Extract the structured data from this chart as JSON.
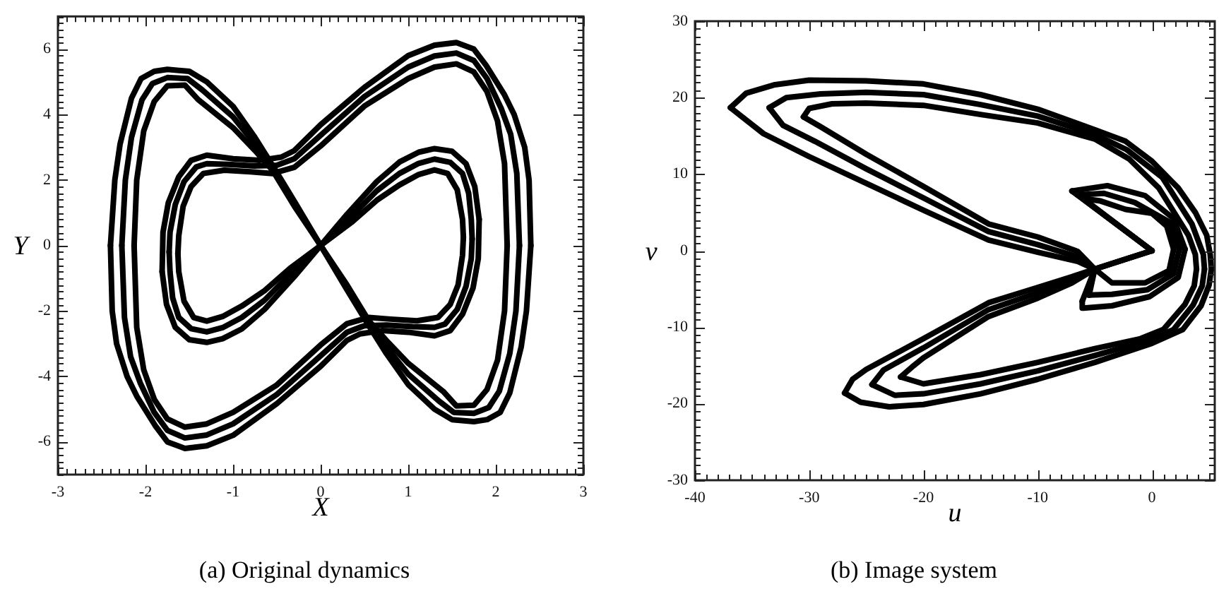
{
  "chart_data": [
    {
      "type": "line",
      "title": "(a) Original dynamics",
      "xlabel": "X",
      "ylabel": "Y",
      "marker": "none",
      "line_style": "solid",
      "xlim": [
        -3,
        3
      ],
      "ylim": [
        -7,
        7
      ],
      "xticks": [
        -3,
        {
          "value": -2.9,
          "label": null
        },
        {
          "value": -2.8,
          "label": null
        },
        {
          "value": -2.7,
          "label": null
        },
        {
          "value": -2.6,
          "label": null
        },
        {
          "value": -2.5,
          "label": null
        },
        {
          "value": -2.4,
          "label": null
        },
        {
          "value": -2.3,
          "label": null
        },
        {
          "value": -2.2,
          "label": null
        },
        {
          "value": -2.1,
          "label": null
        },
        -2,
        {
          "value": -1.9,
          "label": null
        },
        {
          "value": -1.8,
          "label": null
        },
        {
          "value": -1.7,
          "label": null
        },
        {
          "value": -1.6,
          "label": null
        },
        {
          "value": -1.5,
          "label": null
        },
        {
          "value": -1.4,
          "label": null
        },
        {
          "value": -1.3,
          "label": null
        },
        {
          "value": -1.2,
          "label": null
        },
        {
          "value": -1.1,
          "label": null
        },
        -1,
        {
          "value": -0.9,
          "label": null
        },
        {
          "value": -0.8,
          "label": null
        },
        {
          "value": -0.7,
          "label": null
        },
        {
          "value": -0.6,
          "label": null
        },
        {
          "value": -0.5,
          "label": null
        },
        {
          "value": -0.4,
          "label": null
        },
        {
          "value": -0.3,
          "label": null
        },
        {
          "value": -0.2,
          "label": null
        },
        {
          "value": -0.1,
          "label": null
        },
        0,
        {
          "value": 0.1,
          "label": null
        },
        {
          "value": 0.2,
          "label": null
        },
        {
          "value": 0.3,
          "label": null
        },
        {
          "value": 0.4,
          "label": null
        },
        {
          "value": 0.5,
          "label": null
        },
        {
          "value": 0.6,
          "label": null
        },
        {
          "value": 0.7,
          "label": null
        },
        {
          "value": 0.8,
          "label": null
        },
        {
          "value": 0.9,
          "label": null
        },
        1,
        {
          "value": 1.1,
          "label": null
        },
        {
          "value": 1.2,
          "label": null
        },
        {
          "value": 1.3,
          "label": null
        },
        {
          "value": 1.4,
          "label": null
        },
        {
          "value": 1.5,
          "label": null
        },
        {
          "value": 1.6,
          "label": null
        },
        {
          "value": 1.7,
          "label": null
        },
        {
          "value": 1.8,
          "label": null
        },
        {
          "value": 1.9,
          "label": null
        },
        2,
        {
          "value": 2.1,
          "label": null
        },
        {
          "value": 2.2,
          "label": null
        },
        {
          "value": 2.3,
          "label": null
        },
        {
          "value": 2.4,
          "label": null
        },
        {
          "value": 2.5,
          "label": null
        },
        {
          "value": 2.6,
          "label": null
        },
        {
          "value": 2.7,
          "label": null
        },
        {
          "value": 2.8,
          "label": null
        },
        {
          "value": 2.9,
          "label": null
        },
        3
      ],
      "yticks": [
        {
          "value": -7,
          "label": null
        },
        {
          "value": -6.8,
          "label": null
        },
        {
          "value": -6.6,
          "label": null
        },
        {
          "value": -6.4,
          "label": null
        },
        {
          "value": -6.2,
          "label": null
        },
        -6,
        {
          "value": -5.8,
          "label": null
        },
        {
          "value": -5.6,
          "label": null
        },
        {
          "value": -5.4,
          "label": null
        },
        {
          "value": -5.2,
          "label": null
        },
        {
          "value": -5,
          "label": null
        },
        {
          "value": -4.8,
          "label": null
        },
        {
          "value": -4.6,
          "label": null
        },
        {
          "value": -4.4,
          "label": null
        },
        {
          "value": -4.2,
          "label": null
        },
        -4,
        {
          "value": -3.8,
          "label": null
        },
        {
          "value": -3.6,
          "label": null
        },
        {
          "value": -3.4,
          "label": null
        },
        {
          "value": -3.2,
          "label": null
        },
        {
          "value": -3,
          "label": null
        },
        {
          "value": -2.8,
          "label": null
        },
        {
          "value": -2.6,
          "label": null
        },
        {
          "value": -2.4,
          "label": null
        },
        {
          "value": -2.2,
          "label": null
        },
        -2,
        {
          "value": -1.8,
          "label": null
        },
        {
          "value": -1.6,
          "label": null
        },
        {
          "value": -1.4,
          "label": null
        },
        {
          "value": -1.2,
          "label": null
        },
        {
          "value": -1,
          "label": null
        },
        {
          "value": -0.8,
          "label": null
        },
        {
          "value": -0.6,
          "label": null
        },
        {
          "value": -0.4,
          "label": null
        },
        {
          "value": -0.2,
          "label": null
        },
        0,
        {
          "value": 0.2,
          "label": null
        },
        {
          "value": 0.4,
          "label": null
        },
        {
          "value": 0.6,
          "label": null
        },
        {
          "value": 0.8,
          "label": null
        },
        {
          "value": 1,
          "label": null
        },
        {
          "value": 1.2,
          "label": null
        },
        {
          "value": 1.4,
          "label": null
        },
        {
          "value": 1.6,
          "label": null
        },
        {
          "value": 1.8,
          "label": null
        },
        2,
        {
          "value": 2.2,
          "label": null
        },
        {
          "value": 2.4,
          "label": null
        },
        {
          "value": 2.6,
          "label": null
        },
        {
          "value": 2.8,
          "label": null
        },
        {
          "value": 3,
          "label": null
        },
        {
          "value": 3.2,
          "label": null
        },
        {
          "value": 3.4,
          "label": null
        },
        {
          "value": 3.6,
          "label": null
        },
        {
          "value": 3.8,
          "label": null
        },
        4,
        {
          "value": 4.2,
          "label": null
        },
        {
          "value": 4.4,
          "label": null
        },
        {
          "value": 4.6,
          "label": null
        },
        {
          "value": 4.8,
          "label": null
        },
        {
          "value": 5,
          "label": null
        },
        {
          "value": 5.2,
          "label": null
        },
        {
          "value": 5.4,
          "label": null
        },
        {
          "value": 5.6,
          "label": null
        },
        {
          "value": 5.8,
          "label": null
        },
        6,
        {
          "value": 6.2,
          "label": null
        },
        {
          "value": 6.4,
          "label": null
        },
        {
          "value": 6.6,
          "label": null
        },
        {
          "value": 6.8,
          "label": null
        },
        {
          "value": 7,
          "label": null
        }
      ],
      "series": [
        {
          "color": "#000000",
          "x": [
            0,
            0.3,
            0.64,
            0.9,
            1.12,
            1.3,
            1.5,
            1.66,
            1.76,
            1.81,
            null,
            1.81,
            1.8,
            1.74,
            1.62,
            1.48,
            1.3,
            1,
            0.7,
            0.45,
            0.3,
            0,
            -0.5,
            -1,
            -1.3,
            -1.55,
            -1.75,
            -1.89,
            -2.1,
            -2.21,
            -2.33,
            -2.38,
            -2.4,
            null,
            -2.4,
            -2.35,
            -2.29,
            -2.16,
            -2.05,
            -1.9,
            -1.75,
            -1.5,
            -1.3,
            -1,
            -0.75,
            -0.55,
            -0.3,
            0,
            null,
            0,
            -0.3,
            -0.64,
            -0.9,
            -1.12,
            -1.3,
            -1.5,
            -1.66,
            -1.76,
            -1.81,
            null,
            -1.81,
            -1.8,
            -1.74,
            -1.62,
            -1.48,
            -1.3,
            -1,
            -0.7,
            -0.45,
            -0.3,
            0,
            0.5,
            1,
            1.3,
            1.55,
            1.75,
            1.89,
            2.1,
            2.21,
            2.33,
            2.38,
            2.4,
            null,
            2.4,
            2.35,
            2.29,
            2.16,
            2.05,
            1.9,
            1.75,
            1.5,
            1.3,
            1,
            0.75,
            0.55,
            0.3,
            0
          ],
          "values": [
            0,
            0.95,
            1.95,
            2.55,
            2.85,
            2.96,
            2.88,
            2.5,
            1.8,
            0.8,
            null,
            0.8,
            -0.4,
            -1.3,
            -2.1,
            -2.6,
            -2.76,
            -2.65,
            -2.6,
            -2.7,
            -2.9,
            -3.69,
            -4.83,
            -5.8,
            -6.12,
            -6.2,
            -6,
            -5.5,
            -4.6,
            -4,
            -3,
            -2,
            0,
            null,
            0,
            2,
            3.1,
            4.5,
            5.1,
            5.32,
            5.38,
            5.32,
            5,
            4.25,
            3.3,
            2.45,
            1.35,
            0,
            null,
            0,
            -0.95,
            -1.95,
            -2.55,
            -2.85,
            -2.96,
            -2.88,
            -2.5,
            -1.8,
            -0.8,
            null,
            -0.8,
            0.4,
            1.3,
            2.1,
            2.6,
            2.76,
            2.65,
            2.6,
            2.7,
            2.9,
            3.69,
            4.83,
            5.8,
            6.12,
            6.2,
            6,
            5.5,
            4.6,
            4,
            3,
            2,
            0,
            null,
            0,
            -2,
            -3.1,
            -4.5,
            -5.1,
            -5.32,
            -5.38,
            -5.32,
            -5,
            -4.25,
            -3.3,
            -2.45,
            -1.35,
            0
          ]
        },
        {
          "color": "#000000",
          "x": [
            0,
            0.33,
            0.64,
            0.9,
            1.12,
            1.3,
            1.48,
            1.62,
            1.69,
            1.72,
            1.73,
            null,
            1.73,
            1.72,
            1.66,
            1.56,
            1.42,
            1.3,
            1.05,
            0.75,
            0.5,
            0.3,
            0,
            -0.5,
            -1,
            -1.3,
            -1.55,
            -1.75,
            -1.9,
            -2.06,
            -2.17,
            -2.24,
            -2.27,
            null,
            -2.27,
            -2.23,
            -2.16,
            -2.04,
            -1.92,
            -1.75,
            -1.52,
            -1.35,
            -1,
            -0.75,
            -0.55,
            -0.3,
            0,
            null,
            0,
            -0.33,
            -0.64,
            -0.9,
            -1.12,
            -1.3,
            -1.48,
            -1.62,
            -1.69,
            -1.72,
            -1.73,
            null,
            -1.73,
            -1.72,
            -1.66,
            -1.56,
            -1.42,
            -1.3,
            -1.05,
            -0.75,
            -0.5,
            -0.3,
            0,
            0.5,
            1,
            1.3,
            1.55,
            1.75,
            1.9,
            2.06,
            2.17,
            2.24,
            2.27,
            null,
            2.27,
            2.23,
            2.16,
            2.04,
            1.92,
            1.75,
            1.52,
            1.35,
            1,
            0.75,
            0.55,
            0.3,
            0
          ],
          "values": [
            0,
            0.83,
            1.67,
            2.2,
            2.51,
            2.64,
            2.54,
            2.2,
            1.6,
            0.8,
            0.2,
            null,
            0.2,
            -0.4,
            -1.25,
            -1.95,
            -2.4,
            -2.5,
            -2.48,
            -2.43,
            -2.45,
            -2.65,
            -3.37,
            -4.55,
            -5.45,
            -5.79,
            -5.88,
            -5.65,
            -5.1,
            -4.2,
            -3.4,
            -2.2,
            0,
            null,
            0,
            2,
            3.3,
            4.45,
            4.95,
            5.13,
            5.1,
            4.75,
            3.93,
            3.1,
            2.38,
            1.28,
            0,
            null,
            0,
            -0.83,
            -1.67,
            -2.2,
            -2.51,
            -2.64,
            -2.54,
            -2.2,
            -1.6,
            -0.8,
            -0.2,
            null,
            -0.2,
            0.4,
            1.25,
            1.95,
            2.4,
            2.5,
            2.48,
            2.43,
            2.45,
            2.65,
            3.37,
            4.55,
            5.45,
            5.79,
            5.88,
            5.65,
            5.1,
            4.2,
            3.4,
            2.2,
            0,
            null,
            0,
            -2,
            -3.3,
            -4.45,
            -4.95,
            -5.13,
            -5.1,
            -4.75,
            -3.93,
            -3.1,
            -2.38,
            -1.28,
            0
          ]
        },
        {
          "color": "#000000",
          "x": [
            0,
            0.35,
            0.64,
            0.9,
            1.12,
            1.3,
            1.45,
            1.56,
            1.62,
            1.63,
            null,
            1.63,
            1.62,
            1.57,
            1.48,
            1.34,
            1.1,
            0.8,
            0.55,
            0.3,
            0,
            -0.5,
            -1,
            -1.3,
            -1.55,
            -1.75,
            -1.9,
            -2.02,
            -2.1,
            -2.13,
            null,
            -2.13,
            -2.1,
            -2.02,
            -1.9,
            -1.75,
            -1.55,
            -1.4,
            -1,
            -0.75,
            -0.55,
            -0.3,
            0,
            null,
            0,
            -0.35,
            -0.64,
            -0.9,
            -1.12,
            -1.3,
            -1.45,
            -1.56,
            -1.62,
            -1.63,
            null,
            -1.63,
            -1.62,
            -1.57,
            -1.48,
            -1.34,
            -1.1,
            -0.8,
            -0.55,
            -0.3,
            0,
            0.5,
            1,
            1.3,
            1.55,
            1.75,
            1.9,
            2.02,
            2.1,
            2.13,
            null,
            2.13,
            2.1,
            2.02,
            1.9,
            1.75,
            1.55,
            1.4,
            1,
            0.75,
            0.55,
            0.3,
            0
          ],
          "values": [
            0,
            0.7,
            1.38,
            1.85,
            2.17,
            2.31,
            2.2,
            1.7,
            0.8,
            0.25,
            null,
            0.25,
            -0.3,
            -1.2,
            -1.8,
            -2.2,
            -2.3,
            -2.25,
            -2.2,
            -2.39,
            -3.04,
            -4.26,
            -5.1,
            -5.45,
            -5.55,
            -5.3,
            -4.7,
            -3.8,
            -2.5,
            0,
            null,
            0,
            2,
            3.5,
            4.4,
            4.88,
            4.9,
            4.46,
            3.6,
            2.9,
            2.3,
            1.2,
            0,
            null,
            0,
            -0.7,
            -1.38,
            -1.85,
            -2.17,
            -2.31,
            -2.2,
            -1.7,
            -0.8,
            -0.25,
            null,
            -0.25,
            0.3,
            1.2,
            1.8,
            2.2,
            2.3,
            2.25,
            2.2,
            2.39,
            3.04,
            4.26,
            5.1,
            5.45,
            5.55,
            5.3,
            4.7,
            3.8,
            2.5,
            0,
            null,
            0,
            -2,
            -3.5,
            -4.4,
            -4.88,
            -4.9,
            -4.46,
            -3.6,
            -2.9,
            -2.3,
            -1.2,
            0
          ]
        }
      ]
    },
    {
      "type": "line",
      "title": "(b) Image system",
      "xlabel": "u",
      "ylabel": "v",
      "marker": "none",
      "line_style": "solid",
      "xlim": [
        -40,
        5.5
      ],
      "ylim": [
        -30,
        30
      ],
      "xticks": [
        -40,
        {
          "value": -39,
          "label": null
        },
        {
          "value": -38,
          "label": null
        },
        {
          "value": -37,
          "label": null
        },
        {
          "value": -36,
          "label": null
        },
        {
          "value": -35,
          "label": null
        },
        {
          "value": -34,
          "label": null
        },
        {
          "value": -33,
          "label": null
        },
        {
          "value": -32,
          "label": null
        },
        {
          "value": -31,
          "label": null
        },
        -30,
        {
          "value": -29,
          "label": null
        },
        {
          "value": -28,
          "label": null
        },
        {
          "value": -27,
          "label": null
        },
        {
          "value": -26,
          "label": null
        },
        {
          "value": -25,
          "label": null
        },
        {
          "value": -24,
          "label": null
        },
        {
          "value": -23,
          "label": null
        },
        {
          "value": -22,
          "label": null
        },
        {
          "value": -21,
          "label": null
        },
        -20,
        {
          "value": -19,
          "label": null
        },
        {
          "value": -18,
          "label": null
        },
        {
          "value": -17,
          "label": null
        },
        {
          "value": -16,
          "label": null
        },
        {
          "value": -15,
          "label": null
        },
        {
          "value": -14,
          "label": null
        },
        {
          "value": -13,
          "label": null
        },
        {
          "value": -12,
          "label": null
        },
        {
          "value": -11,
          "label": null
        },
        -10,
        {
          "value": -9,
          "label": null
        },
        {
          "value": -8,
          "label": null
        },
        {
          "value": -7,
          "label": null
        },
        {
          "value": -6,
          "label": null
        },
        {
          "value": -5,
          "label": null
        },
        {
          "value": -4,
          "label": null
        },
        {
          "value": -3,
          "label": null
        },
        {
          "value": -2,
          "label": null
        },
        {
          "value": -1,
          "label": null
        },
        0,
        {
          "value": 1,
          "label": null
        },
        {
          "value": 2,
          "label": null
        },
        {
          "value": 3,
          "label": null
        },
        {
          "value": 4,
          "label": null
        },
        {
          "value": 5,
          "label": null
        }
      ],
      "yticks": [
        -30,
        {
          "value": -29,
          "label": null
        },
        {
          "value": -28,
          "label": null
        },
        {
          "value": -27,
          "label": null
        },
        {
          "value": -26,
          "label": null
        },
        {
          "value": -25,
          "label": null
        },
        {
          "value": -24,
          "label": null
        },
        {
          "value": -23,
          "label": null
        },
        {
          "value": -22,
          "label": null
        },
        {
          "value": -21,
          "label": null
        },
        -20,
        {
          "value": -19,
          "label": null
        },
        {
          "value": -18,
          "label": null
        },
        {
          "value": -17,
          "label": null
        },
        {
          "value": -16,
          "label": null
        },
        {
          "value": -15,
          "label": null
        },
        {
          "value": -14,
          "label": null
        },
        {
          "value": -13,
          "label": null
        },
        {
          "value": -12,
          "label": null
        },
        {
          "value": -11,
          "label": null
        },
        -10,
        {
          "value": -9,
          "label": null
        },
        {
          "value": -8,
          "label": null
        },
        {
          "value": -7,
          "label": null
        },
        {
          "value": -6,
          "label": null
        },
        {
          "value": -5,
          "label": null
        },
        {
          "value": -4,
          "label": null
        },
        {
          "value": -3,
          "label": null
        },
        {
          "value": -2,
          "label": null
        },
        {
          "value": -1,
          "label": null
        },
        0,
        {
          "value": 1,
          "label": null
        },
        {
          "value": 2,
          "label": null
        },
        {
          "value": 3,
          "label": null
        },
        {
          "value": 4,
          "label": null
        },
        {
          "value": 5,
          "label": null
        },
        {
          "value": 6,
          "label": null
        },
        {
          "value": 7,
          "label": null
        },
        {
          "value": 8,
          "label": null
        },
        {
          "value": 9,
          "label": null
        },
        10,
        {
          "value": 11,
          "label": null
        },
        {
          "value": 12,
          "label": null
        },
        {
          "value": 13,
          "label": null
        },
        {
          "value": 14,
          "label": null
        },
        {
          "value": 15,
          "label": null
        },
        {
          "value": 16,
          "label": null
        },
        {
          "value": 17,
          "label": null
        },
        {
          "value": 18,
          "label": null
        },
        {
          "value": 19,
          "label": null
        },
        20,
        {
          "value": 21,
          "label": null
        },
        {
          "value": 22,
          "label": null
        },
        {
          "value": 23,
          "label": null
        },
        {
          "value": 24,
          "label": null
        },
        {
          "value": 25,
          "label": null
        },
        {
          "value": 26,
          "label": null
        },
        {
          "value": 27,
          "label": null
        },
        {
          "value": 28,
          "label": null
        },
        {
          "value": 29,
          "label": null
        },
        30
      ],
      "series": [
        {
          "color": "#000000",
          "x": [
            -5,
            -6.5,
            -10,
            -14.3,
            -20,
            -25,
            -30,
            -34,
            -36.9,
            null,
            -36.9,
            -35.5,
            -33,
            -30,
            -25,
            -20,
            -15,
            -10,
            -5,
            -2.3,
            0,
            2.3,
            3.8,
            4.8,
            5.1,
            5.2,
            null,
            5.2,
            5,
            4.3,
            2.7,
            0,
            -5,
            -10,
            -15,
            -20,
            -23,
            -25.5,
            -26.9,
            null,
            -26.9,
            -26.2,
            -25,
            -20,
            -14.3,
            -10,
            -7,
            -5,
            0,
            null,
            0,
            -7,
            null,
            -7,
            -3.9,
            -0.6,
            1.9,
            2.9,
            null,
            2.9,
            2.3,
            -0.2,
            -3.5,
            -6,
            -6.1,
            null,
            -6.1,
            -5
          ],
          "values": [
            -2.4,
            -1.4,
            -0.2,
            1.4,
            5.3,
            8.8,
            12.3,
            15.3,
            18.7,
            null,
            18.7,
            20.6,
            21.7,
            22.3,
            22.2,
            21.8,
            20.4,
            18.5,
            15.8,
            14.3,
            11.7,
            8.2,
            5,
            2,
            -0.5,
            -2.4,
            null,
            -2.4,
            -4.5,
            -7.2,
            -10.3,
            -12.1,
            -14.6,
            -16.8,
            -18.7,
            -20.1,
            -20.4,
            -19.8,
            -18.6,
            null,
            -18.6,
            -16.8,
            -15.5,
            -11.5,
            -6.8,
            -4.8,
            -3.4,
            -2.4,
            0,
            null,
            0,
            7.8,
            null,
            7.8,
            8.5,
            7.2,
            4.2,
            0.2,
            null,
            0.2,
            -3.5,
            -6,
            -7.2,
            -7.5,
            -6.6,
            null,
            -6.6,
            -2.4
          ]
        },
        {
          "color": "#000000",
          "x": [
            -33.5,
            -32,
            -29,
            -25,
            -20,
            -15,
            -10,
            -5,
            -2.2,
            0.9,
            3.5,
            4.5,
            4.6,
            null,
            4.6,
            4.4,
            3.6,
            1.9,
            -0.5,
            -5,
            -10,
            -15,
            -20,
            -22.5,
            -24.5,
            null,
            -24.5,
            -23.5,
            -20,
            -14.3,
            -10,
            -7,
            -5,
            0,
            null,
            0,
            -6.5,
            null,
            -6.5,
            -4.2,
            -1.5,
            1.6,
            2.4,
            null,
            2.4,
            1.9,
            -0.4,
            -3.5,
            -5.5,
            null,
            -5.5,
            -5,
            null,
            -5,
            -6.5,
            -10,
            -14.3,
            -20,
            -25,
            -29.5,
            -32.3,
            -33.5
          ],
          "values": [
            18.7,
            20,
            20.5,
            20.7,
            20.4,
            19.1,
            17.6,
            15.2,
            13.2,
            9.6,
            3.5,
            -0.5,
            -2.4,
            null,
            -2.4,
            -4.6,
            -7.1,
            -10.3,
            -11.8,
            -13.7,
            -15.7,
            -17.4,
            -18.7,
            -18.9,
            -17.5,
            null,
            -17.5,
            -15.6,
            -12.7,
            -7.7,
            -5.5,
            -3.8,
            -2.4,
            0,
            null,
            0,
            7.3,
            null,
            7.3,
            7.5,
            6.3,
            3.7,
            0.2,
            null,
            0.2,
            -3,
            -5.1,
            -5.7,
            -5.8,
            null,
            -5.8,
            -2.4,
            null,
            -2.4,
            -0.8,
            0.8,
            2.5,
            6.9,
            10.7,
            14.3,
            16.4,
            18.7
          ]
        },
        {
          "color": "#000000",
          "x": [
            3.9,
            3.7,
            2.9,
            1,
            -1,
            -5,
            -10,
            -15,
            -20,
            -22,
            null,
            -22,
            -21,
            -20,
            -14.3,
            -10,
            -7,
            -5,
            0,
            null,
            0,
            -6,
            null,
            -6,
            -4.5,
            -2.3,
            0,
            1.3,
            1.9,
            null,
            1.9,
            1.5,
            -0.6,
            -3.5,
            -5,
            null,
            -5,
            -6.5,
            -10,
            -14.3,
            -20,
            -25,
            -29,
            -30.5,
            null,
            -30.5,
            -30,
            -28,
            -25,
            -20,
            -15,
            -10,
            -5,
            -2,
            0.6,
            3.2,
            3.8,
            3.9
          ],
          "values": [
            -2.4,
            -4.6,
            -7,
            -10.3,
            -11.5,
            -12.8,
            -14.6,
            -16.2,
            -17.4,
            -16.5,
            null,
            -16.5,
            -15.2,
            -14,
            -8.6,
            -6.2,
            -4.2,
            -2.4,
            0,
            null,
            0,
            6.8,
            null,
            6.8,
            6.5,
            5.4,
            4.9,
            3.2,
            0.2,
            null,
            0.2,
            -2.6,
            -4.2,
            -4.2,
            -2.4,
            null,
            -2.4,
            -0.1,
            1.8,
            3.5,
            8.4,
            12.6,
            16.2,
            17.5,
            null,
            17.5,
            18.6,
            19.2,
            19.3,
            19,
            17.8,
            16.7,
            14.6,
            12,
            8.2,
            2,
            -0.5,
            -2.4
          ]
        }
      ]
    }
  ]
}
